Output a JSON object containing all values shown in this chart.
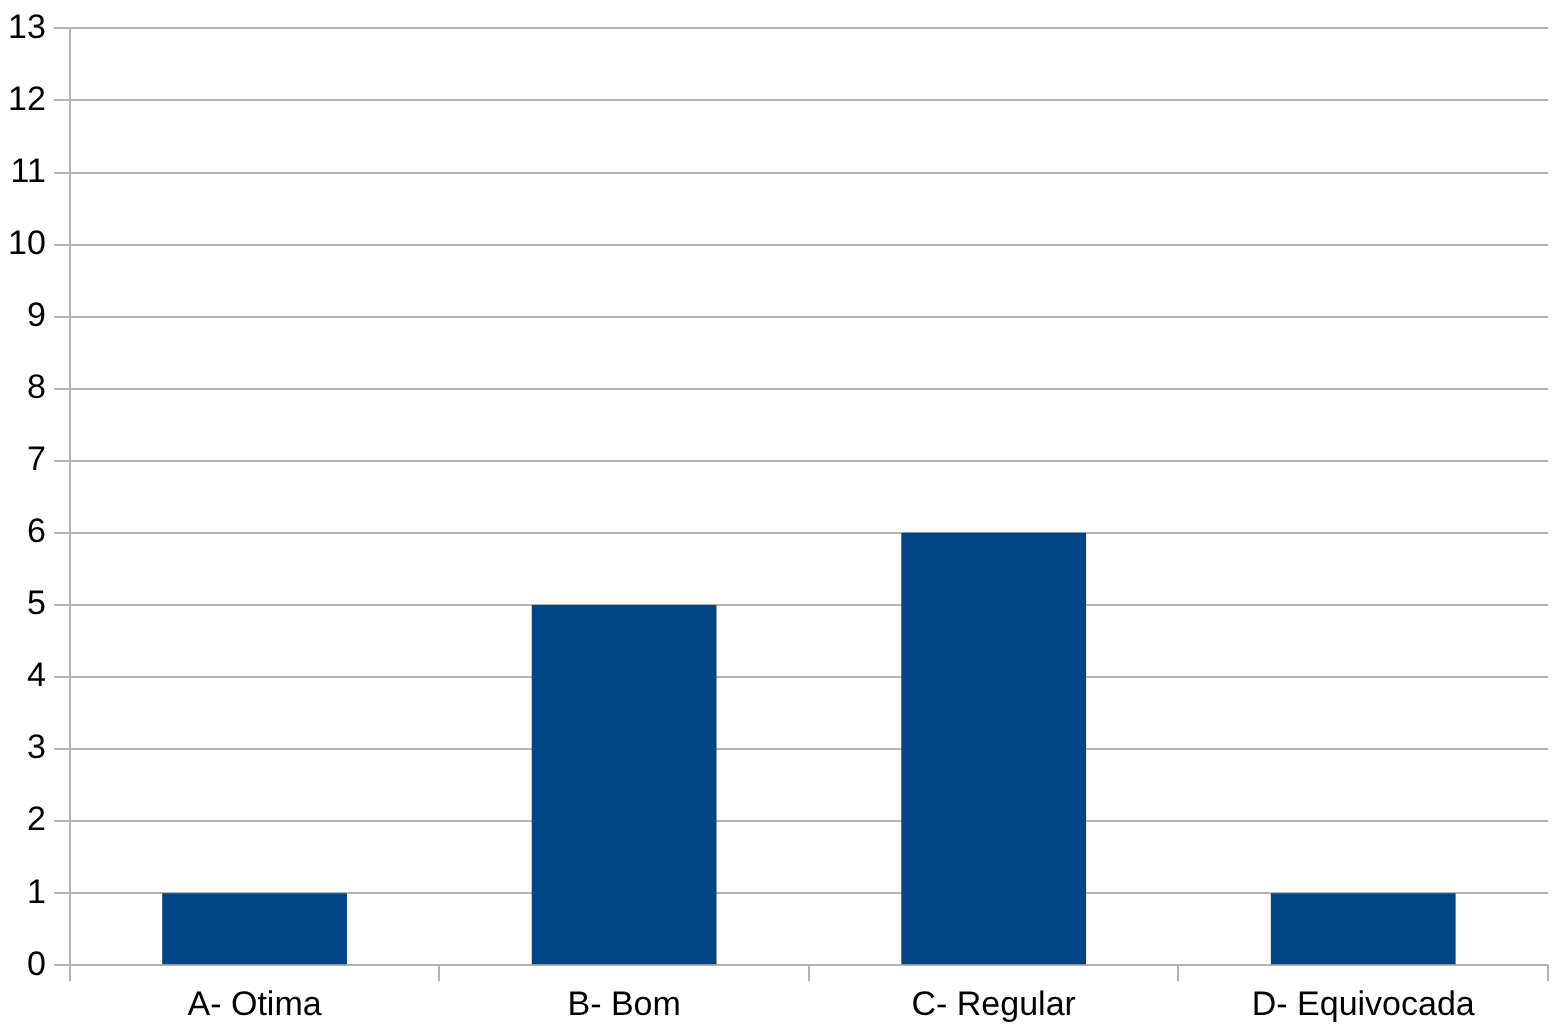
{
  "chart_data": {
    "type": "bar",
    "categories": [
      "A- Otima",
      "B- Bom",
      "C- Regular",
      "D- Equivocada"
    ],
    "values": [
      1,
      5,
      6,
      1
    ],
    "color": "#004586",
    "ylim": [
      0,
      13
    ],
    "yticks": [
      0,
      1,
      2,
      3,
      4,
      5,
      6,
      7,
      8,
      9,
      10,
      11,
      12,
      13
    ],
    "grid": "y",
    "legend": false
  }
}
